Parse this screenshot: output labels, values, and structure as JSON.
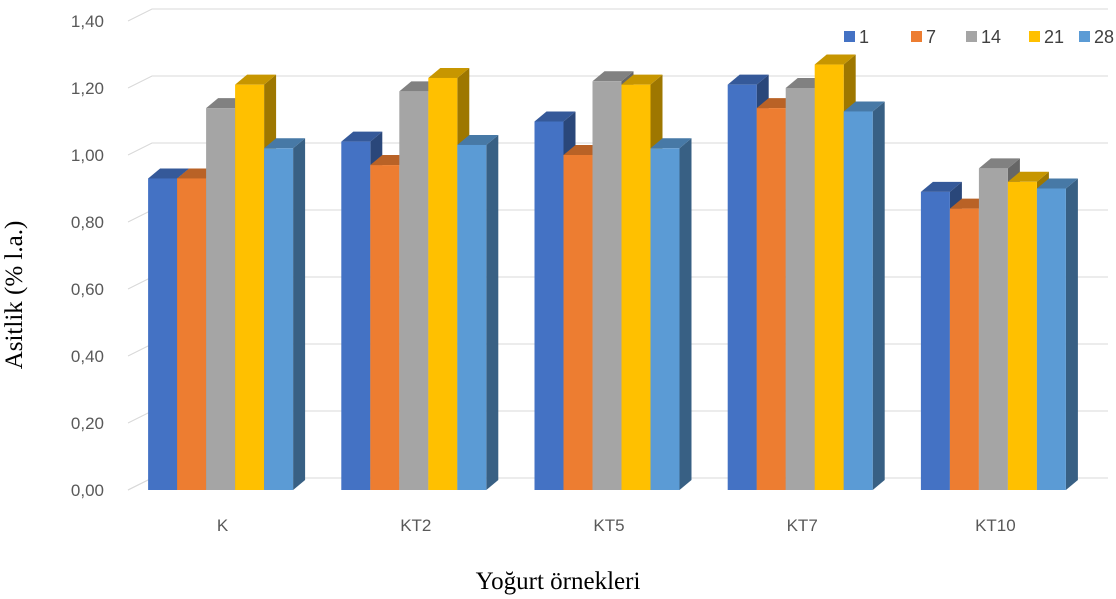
{
  "chart_data": {
    "type": "bar",
    "style": "3d-clustered-column",
    "xlabel": "Yoğurt örnekleri",
    "ylabel": "Asitlik (% l.a.)",
    "categories": [
      "K",
      "KT2",
      "KT5",
      "KT7",
      "KT10"
    ],
    "ylim": [
      0,
      1.4
    ],
    "yticks": [
      "0,00",
      "0,20",
      "0,40",
      "0,60",
      "0,80",
      "1,00",
      "1,20",
      "1,40"
    ],
    "grid": true,
    "legend_position": "top-right",
    "series": [
      {
        "name": "1",
        "color": "#4472C4",
        "values": [
          0.93,
          1.04,
          1.1,
          1.21,
          0.89
        ]
      },
      {
        "name": "7",
        "color": "#ED7D31",
        "values": [
          0.93,
          0.97,
          1.0,
          1.14,
          0.84
        ]
      },
      {
        "name": "14",
        "color": "#A5A5A5",
        "values": [
          1.14,
          1.19,
          1.22,
          1.2,
          0.96
        ]
      },
      {
        "name": "21",
        "color": "#FFC000",
        "values": [
          1.21,
          1.23,
          1.21,
          1.27,
          0.92
        ]
      },
      {
        "name": "28",
        "color": "#5B9BD5",
        "values": [
          1.02,
          1.03,
          1.02,
          1.13,
          0.9
        ]
      }
    ]
  }
}
